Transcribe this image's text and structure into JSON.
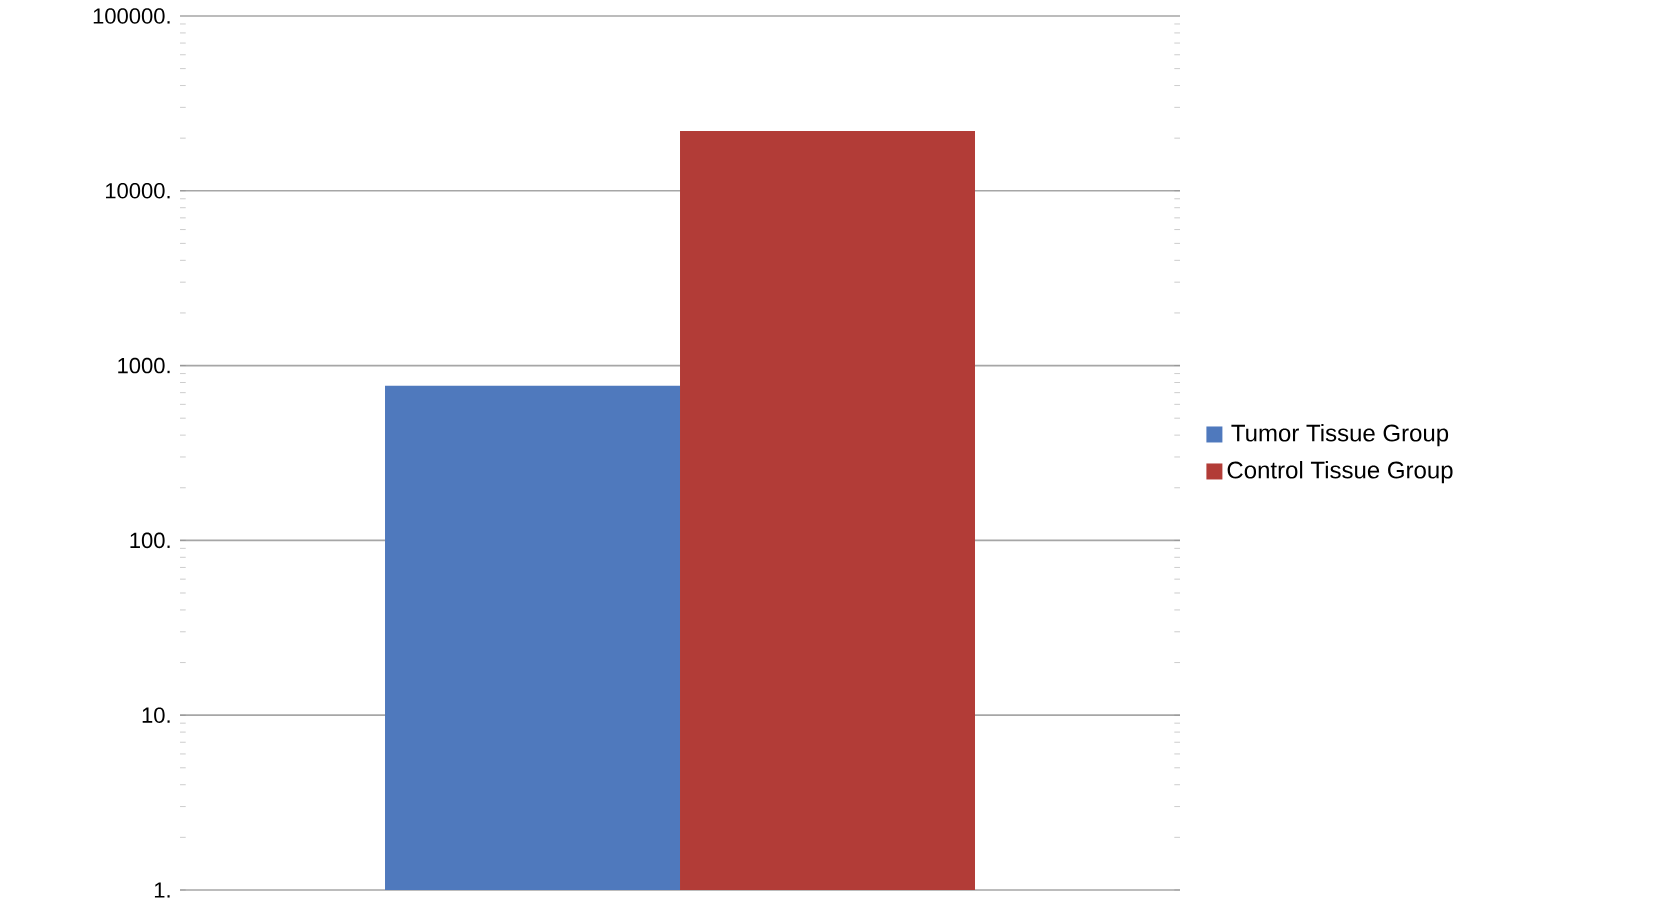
{
  "chart_data": {
    "type": "bar",
    "log": "y",
    "categories": [
      null
    ],
    "series": [
      {
        "name": "Tumor Tissue Group",
        "color": "#4f79bd",
        "values": [
          770
        ]
      },
      {
        "name": "Control Tissue Group",
        "color": "#b23c37",
        "values": [
          22000
        ]
      }
    ],
    "ylim": [
      1,
      100000
    ],
    "yticks": [
      {
        "value": 1,
        "label": "1."
      },
      {
        "value": 10,
        "label": "10."
      },
      {
        "value": 100,
        "label": "100."
      },
      {
        "value": 1000,
        "label": "1000."
      },
      {
        "value": 10000,
        "label": "10000."
      },
      {
        "value": 100000,
        "label": "100000."
      }
    ],
    "grid": "y",
    "legend": "right"
  }
}
